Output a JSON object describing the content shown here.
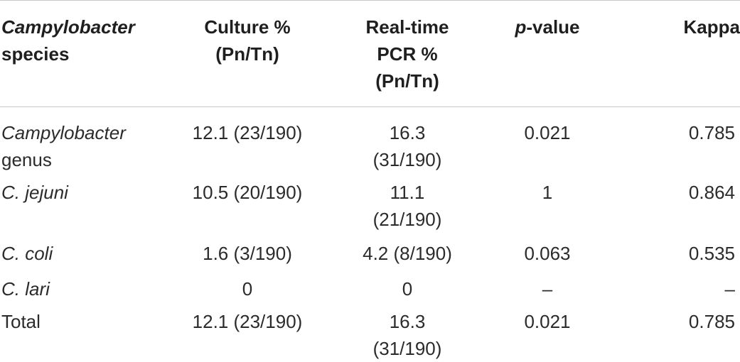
{
  "table": {
    "headers": {
      "species_italic": "Campylobacter",
      "species_rest": "species",
      "culture_line1": "Culture %",
      "culture_line2": "(Pn/Tn)",
      "pcr_line1": "Real-time",
      "pcr_line2": "PCR %",
      "pcr_line3": "(Pn/Tn)",
      "p_italic": "p",
      "p_rest": "-value",
      "kappa": "Kappa"
    },
    "rows": [
      {
        "species_line1": "Campylobacter",
        "species_line2": "genus",
        "culture": "12.1 (23/190)",
        "pcr_line1": "16.3",
        "pcr_line2": "(31/190)",
        "p": "0.021",
        "kappa": "0.785"
      },
      {
        "species_line1": "C. jejuni",
        "culture": "10.5 (20/190)",
        "pcr_line1": "11.1",
        "pcr_line2": "(21/190)",
        "p": "1",
        "kappa": "0.864"
      },
      {
        "species_line1": "C. coli",
        "culture": "1.6 (3/190)",
        "pcr_line1": "4.2 (8/190)",
        "p": "0.063",
        "kappa": "0.535"
      },
      {
        "species_line1": "C. lari",
        "culture": "0",
        "pcr_line1": "0",
        "p": "–",
        "kappa": "–"
      },
      {
        "species_line1": "Total",
        "culture": "12.1 (23/190)",
        "pcr_line1": "16.3",
        "pcr_line2": "(31/190)",
        "p": "0.021",
        "kappa": "0.785"
      }
    ]
  }
}
